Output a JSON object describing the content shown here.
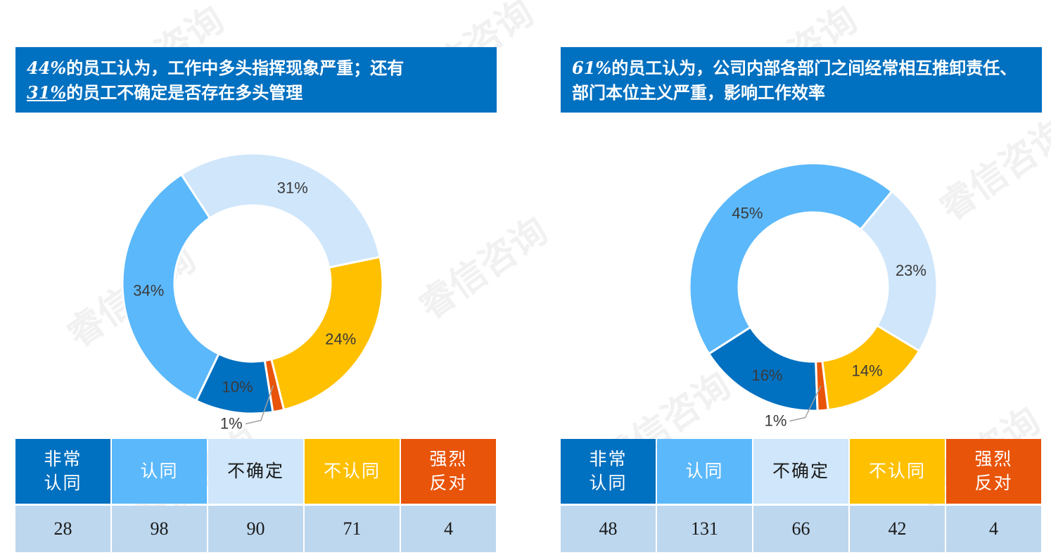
{
  "watermark": "睿信咨询",
  "colors": {
    "banner": "#0070c0",
    "strongly_agree": "#0070c0",
    "agree": "#5bb8fb",
    "unsure": "#cfe6fb",
    "disagree": "#ffc000",
    "strongly_disagree": "#e8540a",
    "value_row": "#bdd7ee"
  },
  "panels": [
    {
      "banner": {
        "pct1": "44%",
        "text1": "的员工认为，工作中多头指挥现象严重；还有",
        "pct2": "31%",
        "text2": "的员工不确定是否存在多头管理"
      },
      "legend": [
        "非常\n认同",
        "认同",
        "不确定",
        "不认同",
        "强烈\n反对"
      ],
      "counts": [
        "28",
        "98",
        "90",
        "71",
        "4"
      ]
    },
    {
      "banner": {
        "pct1": "61%",
        "text1": "的员工认为，公司内部各部门之间经常相互推卸责任、部门本位主义严重，影响工作效率"
      },
      "legend": [
        "非常\n认同",
        "认同",
        "不确定",
        "不认同",
        "强烈\n反对"
      ],
      "counts": [
        "48",
        "131",
        "66",
        "42",
        "4"
      ]
    }
  ],
  "chart_data": [
    {
      "type": "pie",
      "categories": [
        "非常认同",
        "认同",
        "不确定",
        "不认同",
        "强烈反对"
      ],
      "values": [
        28,
        98,
        90,
        71,
        4
      ],
      "labels": [
        "10%",
        "34%",
        "31%",
        "24%",
        "1%"
      ]
    },
    {
      "type": "pie",
      "categories": [
        "非常认同",
        "认同",
        "不确定",
        "不认同",
        "强烈反对"
      ],
      "values": [
        48,
        131,
        66,
        42,
        4
      ],
      "labels": [
        "16%",
        "45%",
        "23%",
        "14%",
        "1%"
      ]
    }
  ]
}
